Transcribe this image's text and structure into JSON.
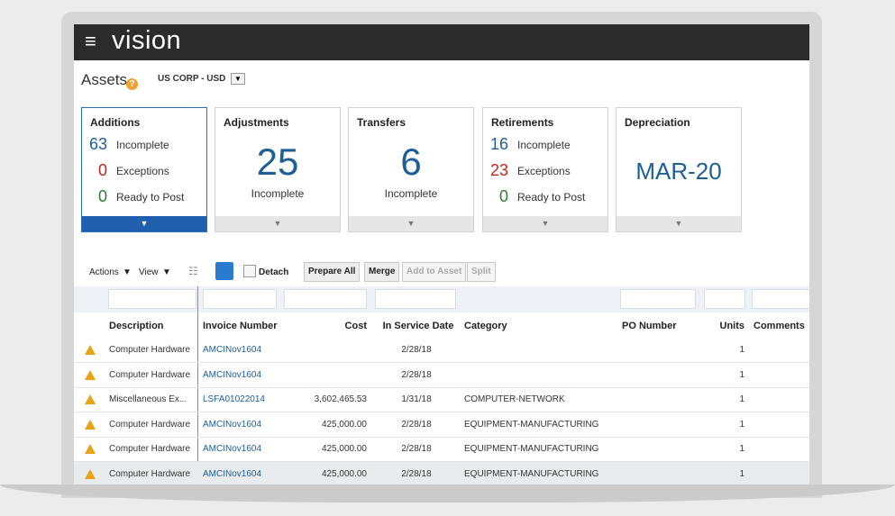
{
  "header": {
    "brand": "vision"
  },
  "page": {
    "title": "Assets",
    "ledger": "US CORP - USD"
  },
  "cards": [
    {
      "title": "Additions",
      "stats": [
        {
          "value": "63",
          "label": "Incomplete"
        },
        {
          "value": "0",
          "label": "Exceptions"
        },
        {
          "value": "0",
          "label": "Ready to Post"
        }
      ]
    },
    {
      "title": "Adjustments",
      "big": "25",
      "caption": "Incomplete"
    },
    {
      "title": "Transfers",
      "big": "6",
      "caption": "Incomplete"
    },
    {
      "title": "Retirements",
      "stats": [
        {
          "value": "16",
          "label": "Incomplete"
        },
        {
          "value": "23",
          "label": "Exceptions"
        },
        {
          "value": "0",
          "label": "Ready to Post"
        }
      ]
    },
    {
      "title": "Depreciation",
      "big": "MAR-20"
    }
  ],
  "toolbar": {
    "actions": "Actions",
    "view": "View",
    "detach": "Detach",
    "buttons": [
      "Prepare All",
      "Merge",
      "Add to Asset",
      "Split"
    ]
  },
  "table": {
    "columns": [
      "Description",
      "Invoice Number",
      "Cost",
      "In Service Date",
      "Category",
      "PO Number",
      "Units",
      "Comments"
    ],
    "rows": [
      [
        "Computer Hardware",
        "AMCINov1604",
        null,
        "2/28/18",
        null,
        null,
        "1",
        null
      ],
      [
        "Computer Hardware",
        "AMCINov1604",
        null,
        "2/28/18",
        null,
        null,
        "1",
        null
      ],
      [
        "Miscellaneous Ex...",
        "LSFA01022014",
        "3,602,465.53",
        "1/31/18",
        "COMPUTER-NETWORK",
        null,
        "1",
        null
      ],
      [
        "Computer Hardware",
        "AMCINov1604",
        "425,000.00",
        "2/28/18",
        "EQUIPMENT-MANUFACTURING",
        null,
        "1",
        null
      ],
      [
        "Computer Hardware",
        "AMCINov1604",
        "425,000.00",
        "2/28/18",
        "EQUIPMENT-MANUFACTURING",
        null,
        "1",
        null
      ],
      [
        "Computer Hardware",
        "AMCINov1604",
        "425,000.00",
        "2/28/18",
        "EQUIPMENT-MANUFACTURING",
        null,
        "1",
        null
      ]
    ]
  }
}
